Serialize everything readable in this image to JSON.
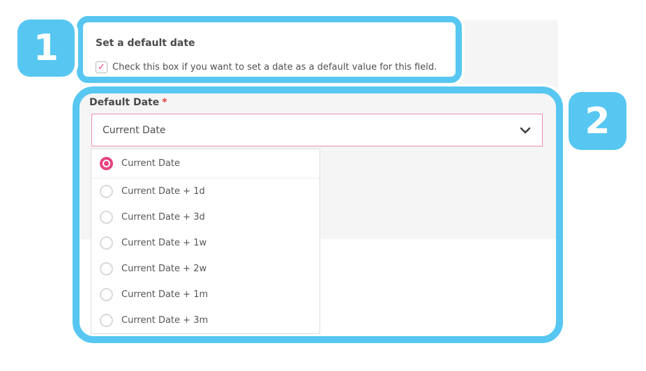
{
  "annotations": {
    "accent_color": "#57c7f2",
    "step1_number": "1",
    "step2_number": "2"
  },
  "colors": {
    "panel_background": "#f5f5f6",
    "pink_accent": "#e84480",
    "select_border_pink": "#ee8cad",
    "required_red": "#e0403a",
    "text_primary": "#4a4a4a",
    "text_secondary": "#565656"
  },
  "section1": {
    "title": "Set a default date",
    "checkbox": {
      "checked": true,
      "check_glyph": "✓",
      "label": "Check this box if you want to set a date as a default value for this field."
    }
  },
  "section2": {
    "field_label": "Default Date",
    "required_mark": "*",
    "select": {
      "value": "Current Date",
      "chevron_icon": "chevron-down"
    },
    "dropdown": {
      "options": [
        {
          "label": "Current Date",
          "selected": true
        },
        {
          "label": "Current Date + 1d",
          "selected": false
        },
        {
          "label": "Current Date + 3d",
          "selected": false
        },
        {
          "label": "Current Date + 1w",
          "selected": false
        },
        {
          "label": "Current Date + 2w",
          "selected": false
        },
        {
          "label": "Current Date + 1m",
          "selected": false
        },
        {
          "label": "Current Date + 3m",
          "selected": false
        }
      ]
    }
  }
}
